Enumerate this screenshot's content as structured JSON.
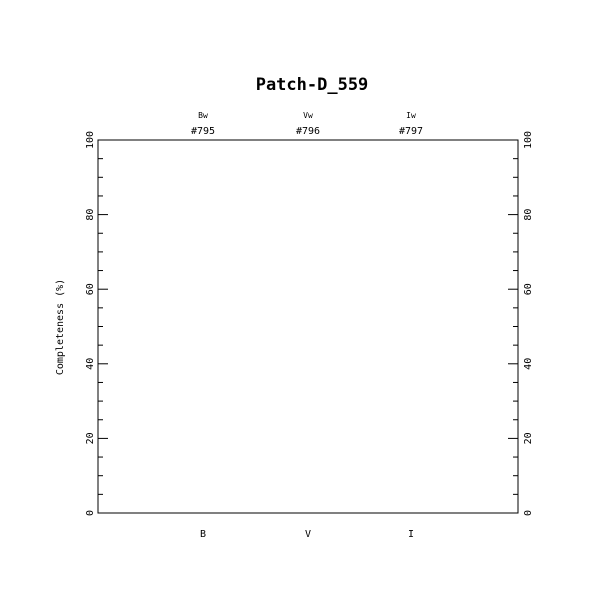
{
  "chart_data": {
    "type": "bar",
    "title": "Patch-D_559",
    "ylabel": "Completeness (%)",
    "xlabel": "",
    "categories": [
      "B",
      "V",
      "I"
    ],
    "top_labels": [
      {
        "filter": "Bw",
        "id": "#795"
      },
      {
        "filter": "Vw",
        "id": "#796"
      },
      {
        "filter": "Iw",
        "id": "#797"
      }
    ],
    "values": [
      null,
      null,
      null
    ],
    "ylim": [
      0,
      100
    ],
    "y_major_ticks": [
      0,
      20,
      40,
      60,
      80,
      100
    ],
    "y_minor_step": 5,
    "grid": false,
    "colors": {
      "axes": "#000000",
      "background": "#ffffff"
    }
  }
}
